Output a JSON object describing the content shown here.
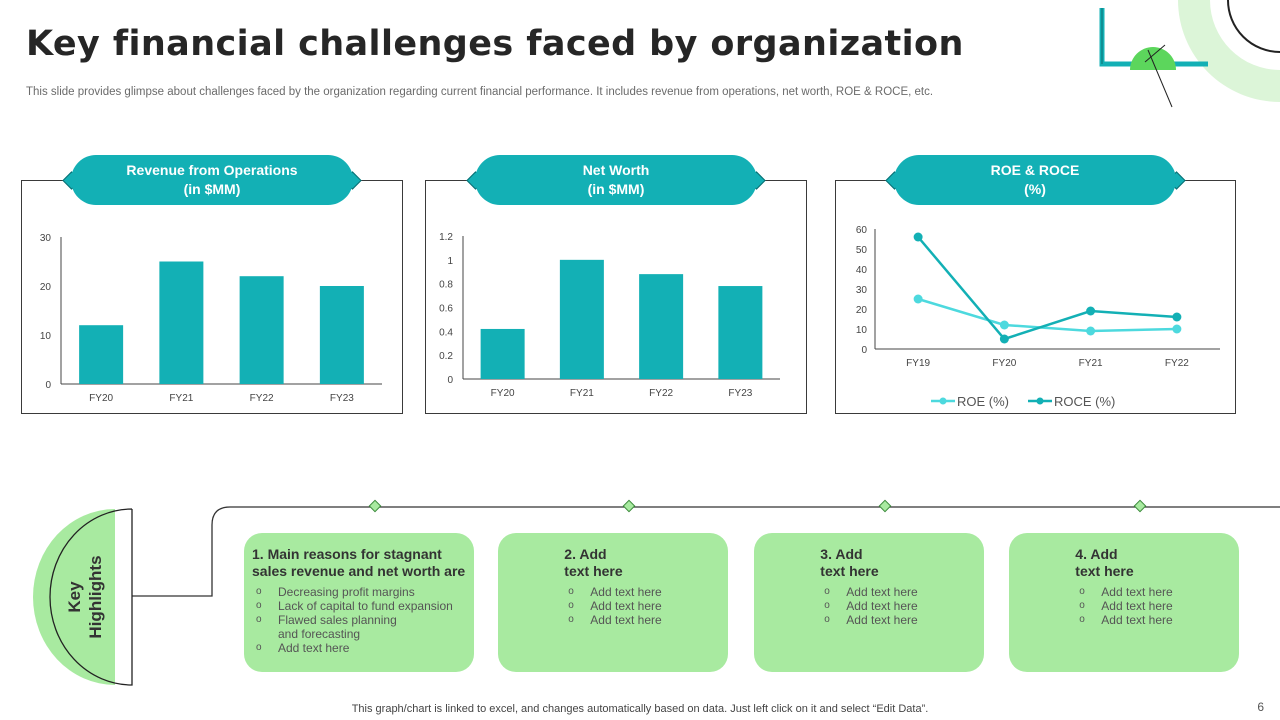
{
  "title": "Key financial challenges faced by organization",
  "subtitle": "This slide provides glimpse about challenges faced by the organization regarding current financial performance. It includes revenue from operations, net worth, ROE & ROCE, etc.",
  "colors": {
    "teal": "#13b0b5",
    "teal_light": "#4dd9de",
    "green": "#a8eaa0",
    "green_accent": "#5cd65c"
  },
  "panels": [
    {
      "title_line1": "Revenue from Operations",
      "title_line2": "(in $MM)"
    },
    {
      "title_line1": "Net Worth",
      "title_line2": "(in $MM)"
    },
    {
      "title_line1": "ROE & ROCE",
      "title_line2": "(%)"
    }
  ],
  "chart_data": [
    {
      "type": "bar",
      "title": "Revenue from Operations (in $MM)",
      "categories": [
        "FY20",
        "FY21",
        "FY22",
        "FY23"
      ],
      "values": [
        12,
        25,
        22,
        20
      ],
      "ylim": [
        0,
        30
      ],
      "yticks": [
        "0",
        "10",
        "20",
        "30"
      ]
    },
    {
      "type": "bar",
      "title": "Net Worth (in $MM)",
      "categories": [
        "FY20",
        "FY21",
        "FY22",
        "FY23"
      ],
      "values": [
        0.42,
        1.0,
        0.88,
        0.78
      ],
      "ylim": [
        0,
        1.2
      ],
      "yticks": [
        "0",
        "0.2",
        "0.4",
        "0.6",
        "0.8",
        "1",
        "1.2"
      ]
    },
    {
      "type": "line",
      "title": "ROE & ROCE (%)",
      "categories": [
        "FY19",
        "FY20",
        "FY21",
        "FY22"
      ],
      "ylim": [
        0,
        60
      ],
      "yticks": [
        "0",
        "10",
        "20",
        "30",
        "40",
        "50",
        "60"
      ],
      "series": [
        {
          "name": "ROE (%)",
          "values": [
            25,
            12,
            9,
            10
          ]
        },
        {
          "name": "ROCE (%)",
          "values": [
            56,
            5,
            19,
            16
          ]
        }
      ]
    }
  ],
  "highlights": {
    "label_line1": "Key",
    "label_line2": "Highlights",
    "cards": [
      {
        "heading_line1": "1. Main reasons for stagnant",
        "heading_line2": "sales revenue and net worth are",
        "items": [
          "Decreasing profit margins",
          "Lack of capital to fund expansion",
          "Flawed sales planning and forecasting",
          "Add text here"
        ]
      },
      {
        "heading_line1": "2. Add",
        "heading_line2": "text here",
        "items": [
          "Add text here",
          "Add text here",
          "Add text here"
        ]
      },
      {
        "heading_line1": "3. Add",
        "heading_line2": "text here",
        "items": [
          "Add text here",
          "Add text here",
          "Add text here"
        ]
      },
      {
        "heading_line1": "4. Add",
        "heading_line2": "text here",
        "items": [
          "Add text here",
          "Add text here",
          "Add text here"
        ]
      }
    ]
  },
  "footer": "This graph/chart is linked to excel,  and changes automatically based on data. Just left click on it and select “Edit Data”.",
  "page_number": "6"
}
